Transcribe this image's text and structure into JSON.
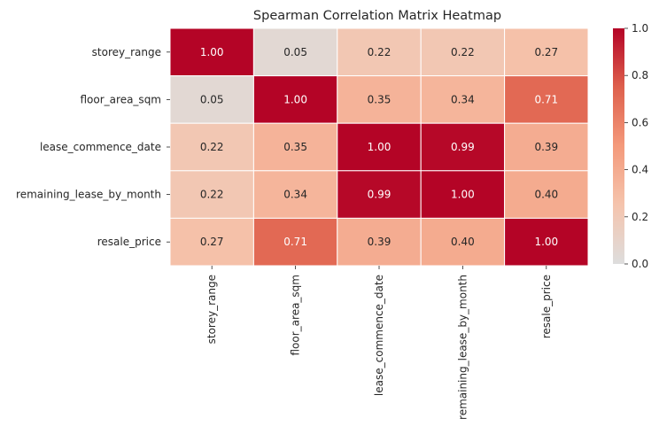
{
  "chart_data": {
    "type": "heatmap",
    "title": "Spearman Correlation Matrix Heatmap",
    "row_labels": [
      "storey_range",
      "floor_area_sqm",
      "lease_commence_date",
      "remaining_lease_by_month",
      "resale_price"
    ],
    "col_labels": [
      "storey_range",
      "floor_area_sqm",
      "lease_commence_date",
      "remaining_lease_by_month",
      "resale_price"
    ],
    "values": [
      [
        1.0,
        0.05,
        0.22,
        0.22,
        0.27
      ],
      [
        0.05,
        1.0,
        0.35,
        0.34,
        0.71
      ],
      [
        0.22,
        0.35,
        1.0,
        0.99,
        0.39
      ],
      [
        0.22,
        0.34,
        0.99,
        1.0,
        0.4
      ],
      [
        0.27,
        0.71,
        0.39,
        0.4,
        1.0
      ]
    ],
    "value_labels": [
      [
        "1.00",
        "0.05",
        "0.22",
        "0.22",
        "0.27"
      ],
      [
        "0.05",
        "1.00",
        "0.35",
        "0.34",
        "0.71"
      ],
      [
        "0.22",
        "0.35",
        "1.00",
        "0.99",
        "0.39"
      ],
      [
        "0.22",
        "0.34",
        "0.99",
        "1.00",
        "0.40"
      ],
      [
        "0.27",
        "0.71",
        "0.39",
        "0.40",
        "1.00"
      ]
    ],
    "colormap": "coolwarm",
    "color_range": [
      0.0,
      1.0
    ],
    "colorbar_ticks": [
      "0.0",
      "0.2",
      "0.4",
      "0.6",
      "0.8",
      "1.0"
    ],
    "colorbar_tick_values": [
      0.0,
      0.2,
      0.4,
      0.6,
      0.8,
      1.0
    ],
    "grid": false,
    "legend": "colorbar-right",
    "colors": {
      "cell_border": "#ffffff",
      "text_dark": "#262626",
      "text_light": "#ffffff"
    }
  }
}
